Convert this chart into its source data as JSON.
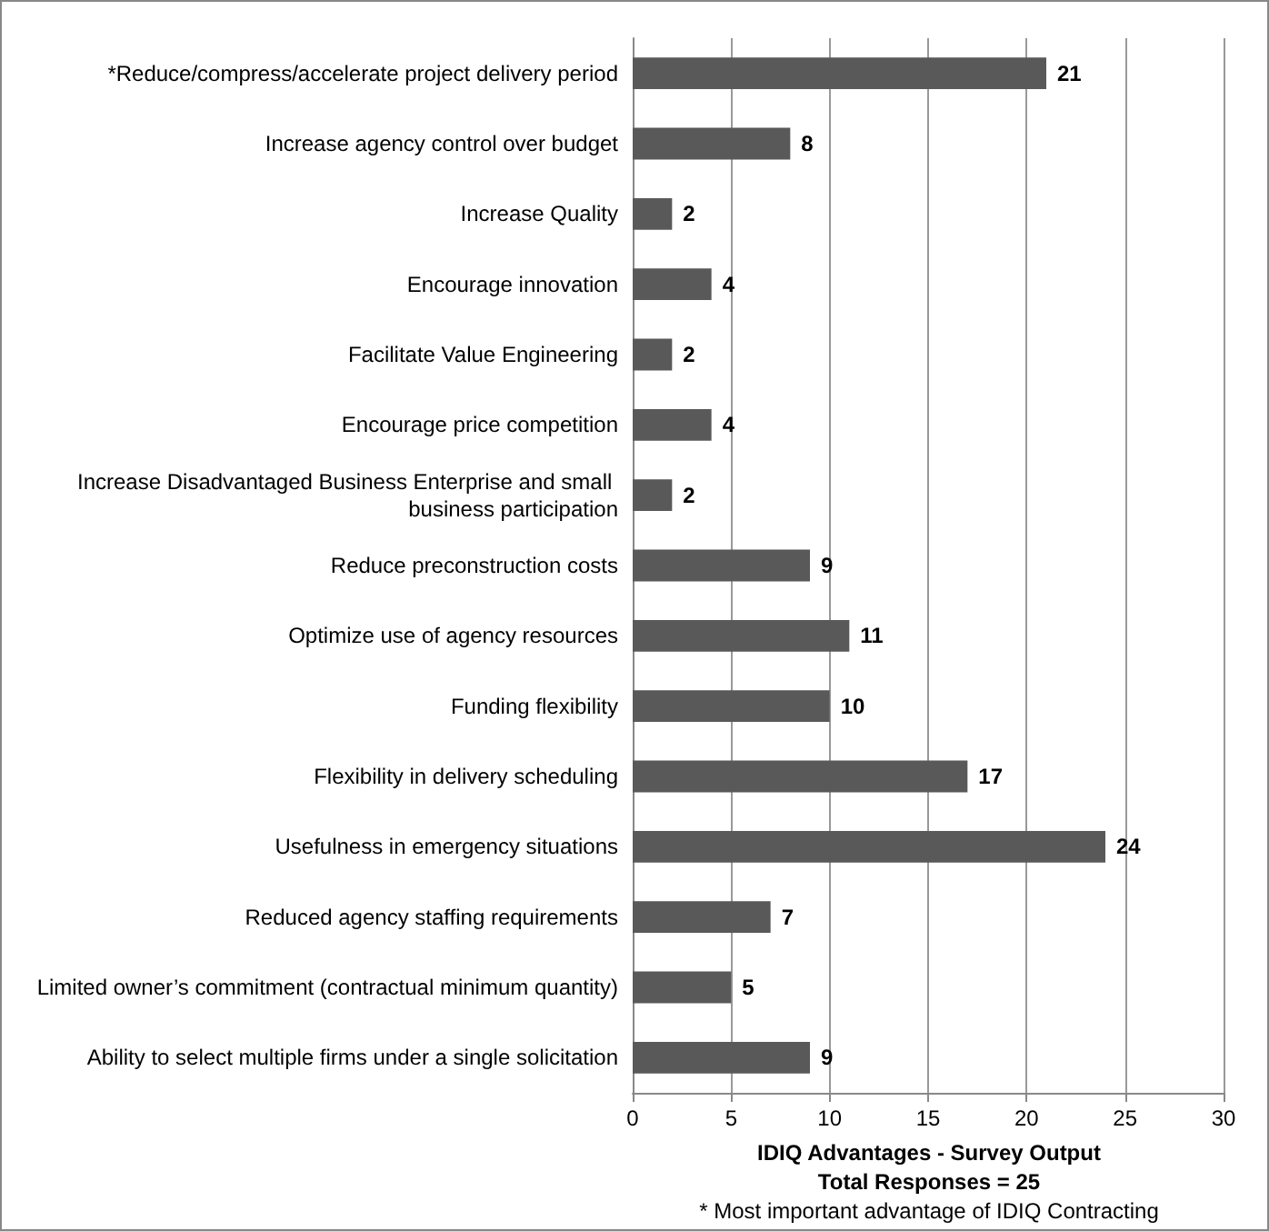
{
  "chart_data": {
    "type": "bar",
    "orientation": "horizontal",
    "categories": [
      "*Reduce/compress/accelerate project delivery period",
      "Increase agency control over budget",
      "Increase Quality",
      "Encourage innovation",
      "Facilitate Value Engineering",
      "Encourage price competition",
      "Increase Disadvantaged Business Enterprise and small business participation",
      "Reduce preconstruction costs",
      "Optimize use of agency resources",
      "Funding flexibility",
      "Flexibility in delivery scheduling",
      "Usefulness in emergency situations",
      "Reduced agency staffing requirements",
      "Limited owner’s commitment (contractual minimum quantity)",
      "Ability to select multiple firms under a single solicitation"
    ],
    "values": [
      21,
      8,
      2,
      4,
      2,
      4,
      2,
      9,
      11,
      10,
      17,
      24,
      7,
      5,
      9
    ],
    "color": "#595959",
    "xlim": [
      0,
      30
    ],
    "xticks": [
      0,
      5,
      10,
      15,
      20,
      25,
      30
    ],
    "grid": "x",
    "data_labels": true,
    "xlabel": "IDIQ Advantages - Survey Output",
    "annotations": [
      "Total Responses = 25",
      "* Most important advantage of IDIQ Contracting"
    ]
  }
}
